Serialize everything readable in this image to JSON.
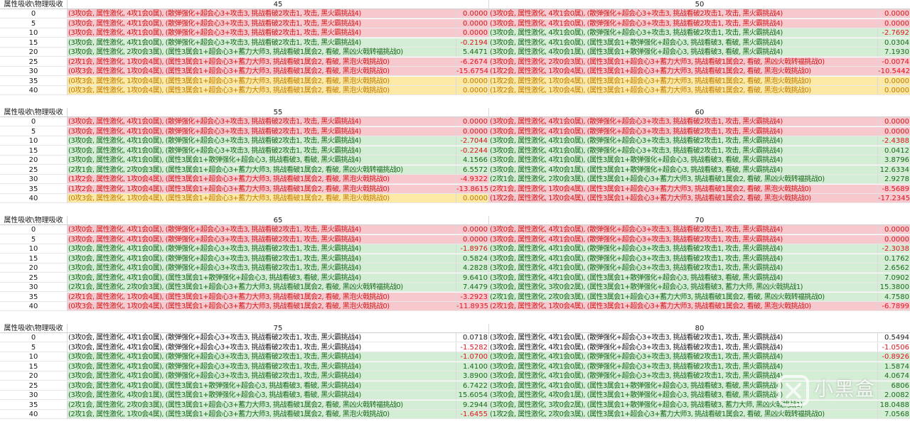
{
  "sheet": {
    "corner_label": "属性吸收\\物理吸收",
    "blocks": [
      {
        "cols": [
          {
            "header": "45",
            "rows": [
              {
                "d": "(3攻0会, 属性激化, 4攻1会0属), (散弹强化+超会心3+攻击3, 挑战看破2攻击1, 攻击, 黑火霸挑战4)",
                "v": "0.0000",
                "c": "red"
              },
              {
                "d": "(3攻0会, 属性激化, 4攻1会0属), (散弹强化+超会心3+攻击3, 挑战看破2攻击1, 攻击, 黑火霸挑战4)",
                "v": "0.0000",
                "c": "red"
              },
              {
                "d": "(3攻0会, 属性激化, 4攻1会0属), (散弹强化+超会心3+攻击3, 挑战看破2攻击1, 攻击, 黑火霸挑战4)",
                "v": "0.0000",
                "c": "red"
              },
              {
                "d": "(3攻0会, 属性激化, 4攻1会0属), (散弹强化+超会心3+攻击3, 挑战看破2攻击1, 攻击, 黑火霸挑战4)",
                "v": "-0.2194",
                "c": "green"
              },
              {
                "d": "(3攻0会, 属性激化, 2攻0会3属), (属性3属会1+超会心3+蓄力大师3, 挑战看破1属会2, 看破, 黑凶火戟转福挑战0)",
                "v": "5.4471",
                "c": "green"
              },
              {
                "d": "(2攻1会, 属性激化, 1攻0会4属), (属性3属会1+超会心3+蓄力大师3, 挑战看破1属会2, 看破, 黑泡火戟挑战0)",
                "v": "-6.2674",
                "c": "red"
              },
              {
                "d": "(0攻3会, 属性激化, 1攻0会4属), (属性3属会1+超会心3+蓄力大师3, 挑战看破1属会2, 看破, 黑泡火戟挑战0)",
                "v": "-15.6754",
                "c": "red"
              },
              {
                "d": "(0攻3会, 属性激化, 1攻0会4属), (属性3属会1+超会心3+蓄力大师3, 挑战看破1属会2, 看破, 黑泡火戟挑战0)",
                "v": "0.0000",
                "c": "yellow"
              },
              {
                "d": "(0攻3会, 属性激化, 1攻0会4属), (属性3属会1+超会心3+蓄力大师3, 挑战看破1属会2, 看破, 黑泡火戟挑战0)",
                "v": "0.0000",
                "c": "yellow"
              }
            ]
          },
          {
            "header": "50",
            "rows": [
              {
                "d": "(3攻0会, 属性激化, 4攻1会0属), (散弹强化+超会心3+攻击3, 挑战看破2攻击1, 攻击, 黑火霸挑战4)",
                "v": "0.0000",
                "c": "red"
              },
              {
                "d": "(3攻0会, 属性激化, 4攻1会0属), (散弹强化+超会心3+攻击3, 挑战看破2攻击1, 攻击, 黑火霸挑战4)",
                "v": "0.0000",
                "c": "red"
              },
              {
                "d": "(3攻0会, 属性激化, 4攻1会0属), (散弹强化+超会心3+攻击3, 挑战看破2攻击1, 攻击, 黑火霸挑战4)",
                "v": "-2.7692",
                "c": "green"
              },
              {
                "d": "(3攻0会, 属性激化, 4攻1会0属), (属性3属会1+散弹强化+超会心3, 挑战看破3, 看破, 黑火霸挑战4)",
                "v": "0.0304",
                "c": "green"
              },
              {
                "d": "(3攻0会, 属性激化, 4攻0会1属), (属性3属会1+散弹强化+超会心3, 挑战看破3, 看破, 黑火霸挑战4)",
                "v": "7.1930",
                "c": "green"
              },
              {
                "d": "(3攻0会, 属性激化, 2攻0会3属), (属性3属会1+超会心3+蓄力大师3, 挑战看破1属会2, 看破, 黑凶火戟转福挑战0)",
                "v": "-0.0074",
                "c": "red"
              },
              {
                "d": "(1攻2会, 属性激化, 1攻0会4属), (属性3属会1+超会心3+蓄力大师3, 挑战看破1属会2, 看破, 黑泡火戟挑战0)",
                "v": "-10.5442",
                "c": "red"
              },
              {
                "d": "(1攻2会, 属性激化, 1攻0会4属), (属性3属会1+超会心3+蓄力大师3, 挑战看破1属会2, 看破, 黑泡火戟挑战0)",
                "v": "0.0000",
                "c": "yellow"
              },
              {
                "d": "(1攻2会, 属性激化, 1攻0会4属), (属性3属会1+超会心3+蓄力大师3, 挑战看破1属会2, 看破, 黑泡火戟挑战0)",
                "v": "0.0000",
                "c": "yellow"
              }
            ]
          }
        ]
      },
      {
        "cols": [
          {
            "header": "55",
            "rows": [
              {
                "d": "(3攻0会, 属性激化, 4攻1会0属), (散弹强化+超会心3+攻击3, 挑战看破2攻击1, 攻击, 黑火霸挑战4)",
                "v": "0.0000",
                "c": "red"
              },
              {
                "d": "(3攻0会, 属性激化, 4攻1会0属), (散弹强化+超会心3+攻击3, 挑战看破2攻击1, 攻击, 黑火霸挑战4)",
                "v": "0.0000",
                "c": "red"
              },
              {
                "d": "(3攻0会, 属性激化, 4攻1会0属), (散弹强化+超会心3+攻击3, 挑战看破2攻击1, 攻击, 黑火霸挑战4)",
                "v": "-2.7044",
                "c": "green"
              },
              {
                "d": "(3攻0会, 属性激化, 4攻1会0属), (散弹强化+超会心3+攻击3, 挑战看破2攻击1, 攻击, 黑火霸挑战4)",
                "v": "-0.2244",
                "c": "green"
              },
              {
                "d": "(3攻0会, 属性激化, 4攻1会0属), (属性3属会1+散弹强化+超会心3, 挑战看破3, 看破, 黑火霸挑战4)",
                "v": "4.1566",
                "c": "green"
              },
              {
                "d": "(2攻1会, 属性激化, 2攻0会3属), (属性3属会1+超会心3+蓄力大师3, 挑战看破1属会2, 看破, 黑凶火戟转福挑战0)",
                "v": "6.5572",
                "c": "green"
              },
              {
                "d": "(1攻2会, 属性激化, 1攻0会4属), (属性3属会1+超会心3+蓄力大师3, 挑战看破1属会2, 看破, 黑泡火戟挑战0)",
                "v": "-4.9322",
                "c": "red"
              },
              {
                "d": "(1攻2会, 属性激化, 1攻0会4属), (属性3属会1+超会心3+蓄力大师3, 挑战看破1属会2, 看破, 黑泡火戟挑战0)",
                "v": "-13.8615",
                "c": "red"
              },
              {
                "d": "(0攻3会, 属性激化, 1攻0会4属), (属性3属会1+超会心3+蓄力大师3, 挑战看破1属会2, 看破, 黑泡火戟挑战0)",
                "v": "0.0000",
                "c": "yellow"
              }
            ]
          },
          {
            "header": "60",
            "rows": [
              {
                "d": "(3攻0会, 属性激化, 4攻1会0属), (散弹强化+超会心3+攻击3, 挑战看破2攻击1, 攻击, 黑火霸挑战4)",
                "v": "0.0000",
                "c": "red"
              },
              {
                "d": "(3攻0会, 属性激化, 4攻1会0属), (散弹强化+超会心3+攻击3, 挑战看破2攻击1, 攻击, 黑火霸挑战4)",
                "v": "0.0000",
                "c": "red"
              },
              {
                "d": "(3攻0会, 属性激化, 4攻1会0属), (散弹强化+超会心3+攻击3, 挑战看破2攻击1, 攻击, 黑火霸挑战4)",
                "v": "-2.4388",
                "c": "green"
              },
              {
                "d": "(3攻0会, 属性激化, 4攻1会0属), (散弹强化+超会心3+攻击3, 挑战看破2攻击1, 攻击, 黑火霸挑战4)",
                "v": "0.0412",
                "c": "green"
              },
              {
                "d": "(3攻0会, 属性激化, 4攻1会0属), (属性3属会1+散弹强化+超会心3, 挑战看破3, 看破, 黑火霸挑战4)",
                "v": "3.8796",
                "c": "green"
              },
              {
                "d": "(3攻0会, 属性激化, 4攻0会1属), (属性3属会1+散弹强化+超会心3, 挑战看破3, 看破, 黑火霸挑战4)",
                "v": "12.6334",
                "c": "green"
              },
              {
                "d": "(2攻1会, 属性激化, 2攻0会3属), (属性3属会1+超会心3+蓄力大师3, 挑战看破1属会2, 看破, 黑凶火戟转福挑战0)",
                "v": "2.9278",
                "c": "green"
              },
              {
                "d": "(2攻1会, 属性激化, 1攻0会4属), (属性3属会1+超会心3+蓄力大师3, 挑战看破1属会2, 看破, 黑泡火戟挑战0)",
                "v": "-8.5689",
                "c": "red"
              },
              {
                "d": "(1攻2会, 属性激化, 1攻0会4属), (属性3属会1+超会心3+蓄力大师3, 挑战看破1属会2, 看破, 黑泡火戟挑战0)",
                "v": "-17.2345",
                "c": "red"
              }
            ]
          }
        ]
      },
      {
        "cols": [
          {
            "header": "65",
            "rows": [
              {
                "d": "(3攻0会, 属性激化, 4攻1会0属), (散弹强化+超会心3+攻击3, 挑战看破2攻击1, 攻击, 黑火霸挑战4)",
                "v": "0.0000",
                "c": "red"
              },
              {
                "d": "(3攻0会, 属性激化, 4攻1会0属), (散弹强化+超会心3+攻击3, 挑战看破2攻击1, 攻击, 黑火霸挑战4)",
                "v": "0.0000",
                "c": "red"
              },
              {
                "d": "(3攻0会, 属性激化, 4攻1会0属), (散弹强化+超会心3+攻击3, 挑战看破2攻击1, 攻击, 黑火霸挑战4)",
                "v": "-1.8976",
                "c": "green"
              },
              {
                "d": "(3攻0会, 属性激化, 4攻1会0属), (散弹强化+超会心3+攻击3, 挑战看破2攻击1, 攻击, 黑火霸挑战4)",
                "v": "0.5824",
                "c": "green"
              },
              {
                "d": "(3攻0会, 属性激化, 4攻1会0属), (散弹强化+超会心3+攻击3, 挑战看破2攻击1, 攻击, 黑火霸挑战4)",
                "v": "4.2828",
                "c": "green"
              },
              {
                "d": "(3攻0会, 属性激化, 4攻1会0属), (属性3属会1+散弹强化+超会心3, 挑战看破3, 看破, 黑火霸挑战4)",
                "v": "9.6410",
                "c": "green"
              },
              {
                "d": "(2攻1会, 属性激化, 2攻0会3属), (属性3属会1+超会心3+蓄力大师3, 挑战看破1属会2, 看破, 黑凶火戟转福挑战0)",
                "v": "7.4479",
                "c": "green"
              },
              {
                "d": "(2攻1会, 属性激化, 1攻0会4属), (属性3属会1+超会心3+蓄力大师3, 挑战看破1属会2, 看破, 黑泡火戟挑战0)",
                "v": "-3.2923",
                "c": "red"
              },
              {
                "d": "(0攻3会, 属性激化, 1攻0会4属), (属性3属会1+超会心3+蓄力大师3, 挑战看破1属会2, 看破, 黑泡火戟挑战0)",
                "v": "-11.8935",
                "c": "red"
              }
            ]
          },
          {
            "header": "70",
            "rows": [
              {
                "d": "(3攻0会, 属性激化, 4攻1会0属), (散弹强化+超会心3+攻击3, 挑战看破2攻击1, 攻击, 黑火霸挑战4)",
                "v": "0.0000",
                "c": "red"
              },
              {
                "d": "(3攻0会, 属性激化, 4攻1会0属), (散弹强化+超会心3+攻击3, 挑战看破2攻击1, 攻击, 黑火霸挑战4)",
                "v": "0.0000",
                "c": "red"
              },
              {
                "d": "(3攻0会, 属性激化, 4攻1会0属), (散弹强化+超会心3+攻击3, 挑战看破2攻击1, 攻击, 黑火霸挑战4)",
                "v": "-2.3038",
                "c": "green"
              },
              {
                "d": "(3攻0会, 属性激化, 4攻1会0属), (散弹强化+超会心3+攻击3, 挑战看破2攻击1, 攻击, 黑火霸挑战4)",
                "v": "0.1762",
                "c": "green"
              },
              {
                "d": "(3攻0会, 属性激化, 4攻1会0属), (散弹强化+超会心3+攻击3, 挑战看破2攻击1, 攻击, 黑火霸挑战4)",
                "v": "2.6562",
                "c": "green"
              },
              {
                "d": "(3攻0会, 属性激化, 4攻1会0属), (属性3属会1+散弹强化+超会心3, 挑战看破3, 看破, 黑火霸挑战4)",
                "v": "7.0902",
                "c": "green"
              },
              {
                "d": "(3攻0会, 属性激化, 3攻0会2属), (属性3属会1+散弹强化+超会心3, 挑战看破3, 蓄力大师, 黑凶火戟挑战1)",
                "v": "15.3800",
                "c": "green"
              },
              {
                "d": "(2攻1会, 属性激化, 2攻0会3属), (属性3属会1+超会心3+蓄力大师3, 挑战看破1属会2, 看破, 黑凶火戟转福挑战0)",
                "v": "4.7580",
                "c": "green"
              },
              {
                "d": "(2攻1会, 属性激化, 1攻0会4属), (属性3属会1+超会心3+蓄力大师3, 挑战看破1属会2, 看破, 黑泡火戟挑战0)",
                "v": "-6.7899",
                "c": "red"
              }
            ]
          }
        ]
      },
      {
        "cols": [
          {
            "header": "75",
            "rows": [
              {
                "d": "(3攻0会, 属性激化, 4攻1会0属), (散弹强化+超会心3+攻击3, 挑战看破2攻击1, 攻击, 黑火霸挑战4)",
                "v": "0.0718",
                "c": "plain"
              },
              {
                "d": "(3攻0会, 属性激化, 4攻1会0属), (散弹强化+超会心3+攻击3, 挑战看破2攻击1, 攻击, 黑火霸挑战4)",
                "v": "-1.5282",
                "c": "plain"
              },
              {
                "d": "(3攻0会, 属性激化, 4攻1会0属), (散弹强化+超会心3+攻击3, 挑战看破2攻击1, 攻击, 黑火霸挑战4)",
                "v": "-1.0700",
                "c": "green"
              },
              {
                "d": "(3攻0会, 属性激化, 4攻1会0属), (散弹强化+超会心3+攻击3, 挑战看破2攻击1, 攻击, 黑火霸挑战4)",
                "v": "1.4100",
                "c": "green"
              },
              {
                "d": "(3攻0会, 属性激化, 4攻1会0属), (散弹强化+超会心3+攻击3, 挑战看破2攻击1, 攻击, 黑火霸挑战4)",
                "v": "3.8900",
                "c": "green"
              },
              {
                "d": "(3攻0会, 属性激化, 4攻1会0属), (属性3属会1+散弹强化+超会心3, 挑战看破3, 看破, 黑火霸挑战4)",
                "v": "6.7422",
                "c": "green"
              },
              {
                "d": "(3攻0会, 属性激化, 4攻0会1属), (属性3属会1+散弹强化+超会心3, 挑战看破3, 看破, 黑火霸挑战4)",
                "v": "15.6054",
                "c": "green"
              },
              {
                "d": "(2攻1会, 属性激化, 2攻0会3属), (属性3属会1+超会心3+蓄力大师3, 挑战看破1属会2, 看破, 黑凶火戟转福挑战0)",
                "v": "9.2944",
                "c": "green"
              },
              {
                "d": "(2攻1会, 属性激化, 1攻0会4属), (属性3属会1+超会心3+蓄力大师3, 挑战看破1属会2, 看破, 黑泡火戟挑战0)",
                "v": "-1.6455",
                "c": "green"
              }
            ]
          },
          {
            "header": "80",
            "rows": [
              {
                "d": "(3攻0会, 属性激化, 4攻1会0属), (散弹强化+超会心3+攻击3, 挑战看破2攻击1, 攻击, 黑火霸挑战4)",
                "v": "0.5494",
                "c": "plain"
              },
              {
                "d": "(3攻0会, 属性激化, 4攻1会0属), (散弹强化+超会心3+攻击3, 挑战看破2攻击1, 攻击, 黑火霸挑战4)",
                "v": "-1.0506",
                "c": "plain"
              },
              {
                "d": "(3攻0会, 属性激化, 4攻1会0属), (散弹强化+超会心3+攻击3, 挑战看破2攻击1, 攻击, 黑火霸挑战4)",
                "v": "-0.8926",
                "c": "green"
              },
              {
                "d": "(3攻0会, 属性激化, 4攻1会0属), (散弹强化+超会心3+攻击3, 挑战看破2攻击1, 攻击, 黑火霸挑战4)",
                "v": "1.5874",
                "c": "green"
              },
              {
                "d": "(3攻0会, 属性激化, 4攻1会0属), (散弹强化+超会心3+攻击3, 挑战看破2攻击1, 攻击, 黑火霸挑战4)",
                "v": "4.0674",
                "c": "green"
              },
              {
                "d": "(3攻0会, 属性激化, 4攻1会0属), (属性3属会1+散弹强化+超会心3, 挑战看破3, 看破, 黑火霸挑战4)",
                "v": "6806",
                "c": "green"
              },
              {
                "d": "(3攻0会, 属性激化, 4攻0会1属), (属性3属会1+散弹强化+超会心3, 挑战看破3, 看破, 黑火霸挑战4)",
                "v": "2.0082",
                "c": "green"
              },
              {
                "d": "(3攻0会, 属性激化, 3攻0会2属), (属性3属会1+散弹强化+超会心3, 挑战看破3, 蓄力大师, 黑凶火戟挑战1)",
                "v": "18.0488",
                "c": "green"
              },
              {
                "d": "(1攻2会, 属性激化, 2攻0会3属), (属性3属会1+超会心3+蓄力大师3, 挑战看破1属会2, 看破, 黑凶火戟转福挑战0)",
                "v": "7.0568",
                "c": "green"
              }
            ]
          }
        ]
      }
    ],
    "row_labels": [
      "0",
      "5",
      "10",
      "15",
      "20",
      "25",
      "30",
      "35",
      "40"
    ]
  },
  "watermark": {
    "text": "小黑盒",
    "icon": "heybox-logo-icon"
  },
  "colors": {
    "green_bg": "#d4edd5",
    "green_text": "#1a6a1e",
    "red_bg": "#f8c8cf",
    "red_text": "#d01a1a",
    "yellow_bg": "#fde9a6",
    "yellow_text": "#c07b00",
    "negative_value": "#e0141e"
  }
}
